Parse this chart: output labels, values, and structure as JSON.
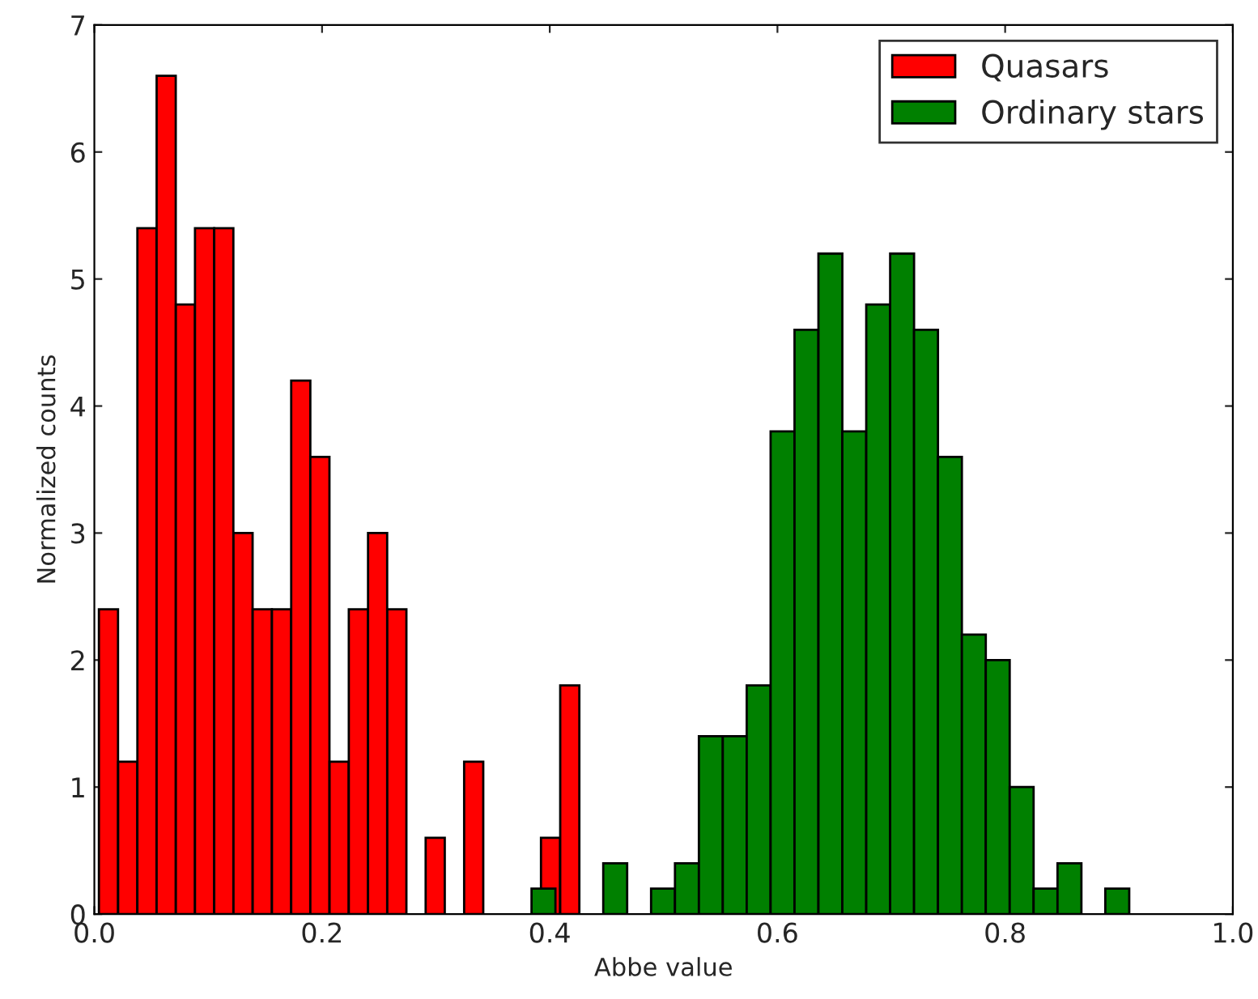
{
  "chart_data": {
    "type": "bar",
    "xlabel": "Abbe value",
    "ylabel": "Normalized counts",
    "series": [
      {
        "name": "Quasars",
        "color": "#ff0000",
        "x": [
          0.0124,
          0.0293,
          0.0462,
          0.0631,
          0.08,
          0.0968,
          0.1137,
          0.1306,
          0.1475,
          0.1644,
          0.1813,
          0.1981,
          0.215,
          0.2319,
          0.2488,
          0.2657,
          0.2826,
          0.2994,
          0.3163,
          0.3332,
          0.3501,
          0.367,
          0.3838,
          0.4007,
          0.4176
        ],
        "values": [
          2.4,
          1.2,
          5.4,
          6.6,
          4.8,
          5.4,
          5.4,
          3.0,
          2.4,
          2.4,
          4.2,
          3.6,
          1.2,
          2.4,
          3.0,
          2.4,
          null,
          0.6,
          null,
          1.2,
          null,
          null,
          null,
          0.6,
          1.8
        ]
      },
      {
        "name": "Ordinary stars",
        "color": "#008000",
        "x": [
          0.3945,
          0.4155,
          0.4365,
          0.4575,
          0.4785,
          0.4995,
          0.5205,
          0.5415,
          0.5625,
          0.5835,
          0.6045,
          0.6255,
          0.6465,
          0.6675,
          0.6885,
          0.7095,
          0.7305,
          0.7515,
          0.7725,
          0.7935,
          0.8145,
          0.8355,
          0.8565,
          0.8775,
          0.8985
        ],
        "values": [
          0.2,
          null,
          null,
          0.4,
          null,
          0.2,
          0.4,
          1.4,
          1.4,
          1.8,
          3.8,
          4.6,
          5.2,
          3.8,
          4.8,
          5.2,
          4.6,
          3.6,
          2.2,
          2.0,
          1.0,
          0.2,
          0.4,
          null,
          0.2
        ]
      }
    ],
    "xlim": [
      0.0,
      1.0
    ],
    "xticks": [
      {
        "value": 0.0,
        "label": "0.0"
      },
      0.2,
      0.4,
      0.6,
      0.8,
      {
        "value": 1.0,
        "label": "1.0"
      }
    ],
    "ylim": [
      0,
      7
    ],
    "yticks": [
      0,
      1,
      2,
      3,
      4,
      5,
      6,
      7
    ],
    "grid": false,
    "legend": "top right"
  }
}
